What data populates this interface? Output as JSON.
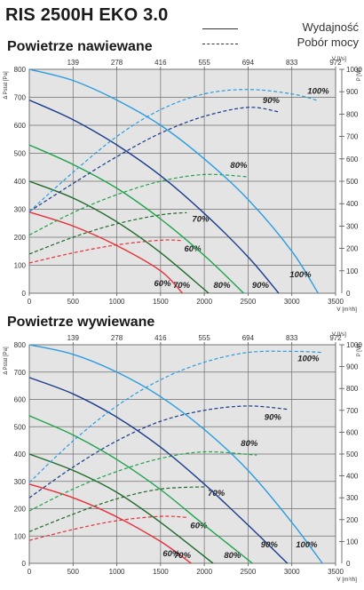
{
  "title": "RIS 2500H EKO 3.0",
  "legend": {
    "efficiency": "Wydajność",
    "power": "Pobór mocy"
  },
  "colors": {
    "plot_bg": "#e4e4e4",
    "grid": "#6e6e6e",
    "red": "#e8303a",
    "darkgreen": "#1f6a2a",
    "green": "#1ea24a",
    "darkblue": "#1a3c8c",
    "lightblue": "#2a9de0"
  },
  "chart_data": [
    {
      "type": "line",
      "title": "Powietrze nawiewane",
      "xlabel": "V [m³/h]",
      "x2label": "V [l/s]",
      "ylabel": "Δ Pstat [Pa]",
      "y2label": "P [W]",
      "xlim": [
        0,
        3500
      ],
      "ylim": [
        0,
        800
      ],
      "y2lim": [
        0,
        1000
      ],
      "x_ticks": [
        "0",
        "500",
        "1000",
        "1500",
        "2000",
        "2500",
        "3000",
        "3500"
      ],
      "x2_ticks": [
        "139",
        "278",
        "416",
        "555",
        "694",
        "833",
        "972"
      ],
      "y_ticks": [
        "100",
        "200",
        "300",
        "400",
        "500",
        "600",
        "700",
        "800"
      ],
      "y2_ticks": [
        "100",
        "200",
        "300",
        "400",
        "500",
        "600",
        "700",
        "800",
        "900",
        "1000"
      ],
      "series": [
        {
          "name": "60%",
          "color": "red",
          "pressure": [
            [
              0,
              290
            ],
            [
              500,
              240
            ],
            [
              1000,
              170
            ],
            [
              1500,
              80
            ],
            [
              1750,
              0
            ]
          ],
          "power": [
            [
              0,
              135
            ],
            [
              500,
              180
            ],
            [
              1000,
              216
            ],
            [
              1500,
              237
            ],
            [
              1750,
              235
            ]
          ]
        },
        {
          "name": "70%",
          "color": "darkgreen",
          "pressure": [
            [
              0,
              400
            ],
            [
              500,
              340
            ],
            [
              1000,
              255
            ],
            [
              1500,
              145
            ],
            [
              2050,
              0
            ]
          ],
          "power": [
            [
              0,
              175
            ],
            [
              500,
              250
            ],
            [
              1000,
              310
            ],
            [
              1500,
              350
            ],
            [
              1800,
              360
            ]
          ]
        },
        {
          "name": "80%",
          "color": "green",
          "pressure": [
            [
              0,
              530
            ],
            [
              500,
              460
            ],
            [
              1000,
              375
            ],
            [
              1500,
              265
            ],
            [
              2000,
              135
            ],
            [
              2450,
              0
            ]
          ],
          "power": [
            [
              0,
              260
            ],
            [
              500,
              360
            ],
            [
              1000,
              440
            ],
            [
              1500,
              500
            ],
            [
              2000,
              530
            ],
            [
              2500,
              520
            ]
          ]
        },
        {
          "name": "90%",
          "color": "darkblue",
          "pressure": [
            [
              0,
              690
            ],
            [
              500,
              620
            ],
            [
              1000,
              530
            ],
            [
              1500,
              420
            ],
            [
              2000,
              285
            ],
            [
              2500,
              130
            ],
            [
              2850,
              0
            ]
          ],
          "power": [
            [
              0,
              365
            ],
            [
              500,
              490
            ],
            [
              1000,
              610
            ],
            [
              1500,
              715
            ],
            [
              2000,
              790
            ],
            [
              2500,
              830
            ],
            [
              2850,
              810
            ]
          ]
        },
        {
          "name": "100%",
          "color": "lightblue",
          "pressure": [
            [
              0,
              800
            ],
            [
              500,
              760
            ],
            [
              1000,
              690
            ],
            [
              1500,
              600
            ],
            [
              2000,
              480
            ],
            [
              2500,
              335
            ],
            [
              3000,
              150
            ],
            [
              3300,
              0
            ]
          ],
          "power": [
            [
              0,
              365
            ],
            [
              500,
              540
            ],
            [
              1000,
              700
            ],
            [
              1500,
              820
            ],
            [
              2000,
              890
            ],
            [
              2500,
              910
            ],
            [
              3000,
              890
            ],
            [
              3300,
              860
            ]
          ]
        }
      ],
      "pressure_labels": [
        "60%",
        "70%",
        "80%",
        "90%",
        "100%"
      ],
      "power_labels": [
        "60%",
        "70%",
        "80%",
        "90%",
        "100%"
      ]
    },
    {
      "type": "line",
      "title": "Powietrze wywiewane",
      "xlabel": "V [m³/h]",
      "x2label": "V [l/s]",
      "ylabel": "Δ Pstat [Pa]",
      "y2label": "P [W]",
      "xlim": [
        0,
        3500
      ],
      "ylim": [
        0,
        800
      ],
      "y2lim": [
        0,
        1000
      ],
      "x_ticks": [
        "0",
        "500",
        "1000",
        "1500",
        "2000",
        "2500",
        "3000",
        "3500"
      ],
      "x2_ticks": [
        "139",
        "278",
        "416",
        "555",
        "694",
        "833",
        "972"
      ],
      "y_ticks": [
        "100",
        "200",
        "300",
        "400",
        "500",
        "600",
        "700",
        "800"
      ],
      "y2_ticks": [
        "100",
        "200",
        "300",
        "400",
        "500",
        "600",
        "700",
        "800",
        "900",
        "1000"
      ],
      "series": [
        {
          "name": "60%",
          "color": "red",
          "pressure": [
            [
              0,
              290
            ],
            [
              500,
              240
            ],
            [
              1000,
              170
            ],
            [
              1500,
              80
            ],
            [
              1850,
              0
            ]
          ],
          "power": [
            [
              0,
              105
            ],
            [
              500,
              155
            ],
            [
              1000,
              195
            ],
            [
              1500,
              215
            ],
            [
              1800,
              210
            ]
          ]
        },
        {
          "name": "70%",
          "color": "darkgreen",
          "pressure": [
            [
              0,
              400
            ],
            [
              500,
              340
            ],
            [
              1000,
              260
            ],
            [
              1500,
              150
            ],
            [
              2100,
              0
            ]
          ],
          "power": [
            [
              0,
              145
            ],
            [
              500,
              225
            ],
            [
              1000,
              295
            ],
            [
              1500,
              340
            ],
            [
              2000,
              350
            ]
          ]
        },
        {
          "name": "80%",
          "color": "green",
          "pressure": [
            [
              0,
              540
            ],
            [
              500,
              470
            ],
            [
              1000,
              380
            ],
            [
              1500,
              270
            ],
            [
              2000,
              140
            ],
            [
              2550,
              0
            ]
          ],
          "power": [
            [
              0,
              240
            ],
            [
              500,
              340
            ],
            [
              1000,
              420
            ],
            [
              1500,
              480
            ],
            [
              2000,
              510
            ],
            [
              2600,
              495
            ]
          ]
        },
        {
          "name": "90%",
          "color": "darkblue",
          "pressure": [
            [
              0,
              680
            ],
            [
              500,
              620
            ],
            [
              1000,
              535
            ],
            [
              1500,
              425
            ],
            [
              2000,
              290
            ],
            [
              2500,
              140
            ],
            [
              2950,
              0
            ]
          ],
          "power": [
            [
              0,
              300
            ],
            [
              500,
              440
            ],
            [
              1000,
              560
            ],
            [
              1500,
              650
            ],
            [
              2000,
              700
            ],
            [
              2500,
              720
            ],
            [
              2950,
              705
            ]
          ]
        },
        {
          "name": "100%",
          "color": "lightblue",
          "pressure": [
            [
              0,
              800
            ],
            [
              500,
              765
            ],
            [
              1000,
              700
            ],
            [
              1500,
              610
            ],
            [
              2000,
              490
            ],
            [
              2500,
              340
            ],
            [
              3000,
              150
            ],
            [
              3350,
              0
            ]
          ],
          "power": [
            [
              0,
              370
            ],
            [
              500,
              560
            ],
            [
              1000,
              720
            ],
            [
              1500,
              840
            ],
            [
              2000,
              920
            ],
            [
              2500,
              965
            ],
            [
              3000,
              970
            ],
            [
              3350,
              965
            ]
          ]
        }
      ],
      "pressure_labels": [
        "60%",
        "70%",
        "80%",
        "90%",
        "100%"
      ],
      "power_labels": [
        "60%",
        "70%",
        "80%",
        "90%",
        "100%"
      ]
    }
  ]
}
